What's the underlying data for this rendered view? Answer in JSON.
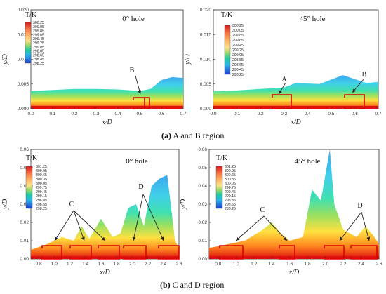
{
  "captions": {
    "a_label": "(a)",
    "a_text": " A and B region",
    "b_label": "(b)",
    "b_text": " C and D region"
  },
  "chart_data": [
    {
      "type": "heatmap",
      "panel": "a-left",
      "title": "0° hole",
      "xlabel": "x/D",
      "ylabel": "y/D",
      "xlim": [
        0.0,
        0.7
      ],
      "ylim": [
        0.0,
        0.02
      ],
      "xticks": [
        "0.0",
        "0.1",
        "0.2",
        "0.3",
        "0.4",
        "0.5",
        "0.6",
        "0.7"
      ],
      "yticks": [
        "0.000",
        "0.005",
        "0.010",
        "0.015",
        "0.020"
      ],
      "legend_title": "T/K",
      "legend": [
        "300.25",
        "300.05",
        "299.85",
        "299.65",
        "299.45",
        "299.25",
        "299.05",
        "298.85",
        "298.65",
        "298.45",
        "298.25"
      ],
      "annotations": [
        "B"
      ],
      "profile_x": [
        0.0,
        0.1,
        0.2,
        0.3,
        0.4,
        0.5,
        0.55,
        0.6,
        0.65,
        0.7
      ],
      "profile_y": [
        0.0036,
        0.0038,
        0.004,
        0.004,
        0.0039,
        0.0036,
        0.004,
        0.0058,
        0.0064,
        0.0062
      ]
    },
    {
      "type": "heatmap",
      "panel": "a-right",
      "title": "45° hole",
      "xlabel": "x/D",
      "ylabel": "y/D",
      "xlim": [
        0.0,
        0.7
      ],
      "ylim": [
        0.0,
        0.02
      ],
      "xticks": [
        "0.0",
        "0.1",
        "0.2",
        "0.3",
        "0.4",
        "0.5",
        "0.6",
        "0.7"
      ],
      "yticks": [
        "0.000",
        "0.005",
        "0.010",
        "0.015",
        "0.020"
      ],
      "legend_title": "T/K",
      "legend": [
        "300.25",
        "300.05",
        "299.85",
        "299.65",
        "299.45",
        "299.25",
        "299.05",
        "298.85",
        "298.65",
        "298.45",
        "298.25"
      ],
      "annotations": [
        "A",
        "B"
      ],
      "profile_x": [
        0.0,
        0.1,
        0.2,
        0.3,
        0.35,
        0.45,
        0.55,
        0.6,
        0.65,
        0.7
      ],
      "profile_y": [
        0.0035,
        0.0037,
        0.004,
        0.0043,
        0.0052,
        0.005,
        0.0068,
        0.006,
        0.0052,
        0.0054
      ]
    },
    {
      "type": "heatmap",
      "panel": "b-left",
      "title": "0° hole",
      "xlabel": "x/D",
      "ylabel": "y/D",
      "xlim": [
        0.7,
        2.6
      ],
      "ylim": [
        0.0,
        0.06
      ],
      "xticks": [
        "0.8",
        "1.0",
        "1.2",
        "1.4",
        "1.6",
        "1.8",
        "2.0",
        "2.2",
        "2.4",
        "2.6"
      ],
      "yticks": [
        "0.00",
        "0.01",
        "0.02",
        "0.03",
        "0.04",
        "0.05",
        "0.06"
      ],
      "legend_title": "T/K",
      "legend": [
        "301.25",
        "300.95",
        "300.65",
        "300.35",
        "300.05",
        "299.75",
        "299.45",
        "299.15",
        "298.85",
        "298.55",
        "298.25"
      ],
      "annotations": [
        "C",
        "D"
      ],
      "profile_x": [
        0.7,
        0.9,
        1.1,
        1.25,
        1.35,
        1.45,
        1.6,
        1.75,
        1.85,
        1.95,
        2.05,
        2.15,
        2.25,
        2.35,
        2.45,
        2.55,
        2.6
      ],
      "profile_y": [
        0.005,
        0.008,
        0.012,
        0.01,
        0.018,
        0.011,
        0.022,
        0.012,
        0.014,
        0.028,
        0.03,
        0.018,
        0.04,
        0.044,
        0.046,
        0.01,
        0.006
      ]
    },
    {
      "type": "heatmap",
      "panel": "b-right",
      "title": "45° hole",
      "xlabel": "x/D",
      "ylabel": "y/D",
      "xlim": [
        0.7,
        2.6
      ],
      "ylim": [
        0.0,
        0.06
      ],
      "xticks": [
        "0.8",
        "1.0",
        "1.2",
        "1.4",
        "1.6",
        "1.8",
        "2.0",
        "2.2",
        "2.4",
        "2.6"
      ],
      "yticks": [
        "0.00",
        "0.01",
        "0.02",
        "0.03",
        "0.04",
        "0.05",
        "0.06"
      ],
      "legend_title": "T/K",
      "legend": [
        "301.25",
        "300.95",
        "300.65",
        "300.35",
        "300.05",
        "299.75",
        "299.45",
        "299.15",
        "298.85",
        "298.55",
        "298.25"
      ],
      "annotations": [
        "C",
        "D"
      ],
      "profile_x": [
        0.7,
        0.9,
        1.1,
        1.3,
        1.4,
        1.5,
        1.6,
        1.75,
        1.85,
        1.95,
        2.05,
        2.1,
        2.2,
        2.35,
        2.45,
        2.55,
        2.6
      ],
      "profile_y": [
        0.006,
        0.008,
        0.01,
        0.016,
        0.02,
        0.014,
        0.01,
        0.012,
        0.038,
        0.032,
        0.06,
        0.03,
        0.016,
        0.012,
        0.018,
        0.012,
        0.008
      ]
    }
  ]
}
